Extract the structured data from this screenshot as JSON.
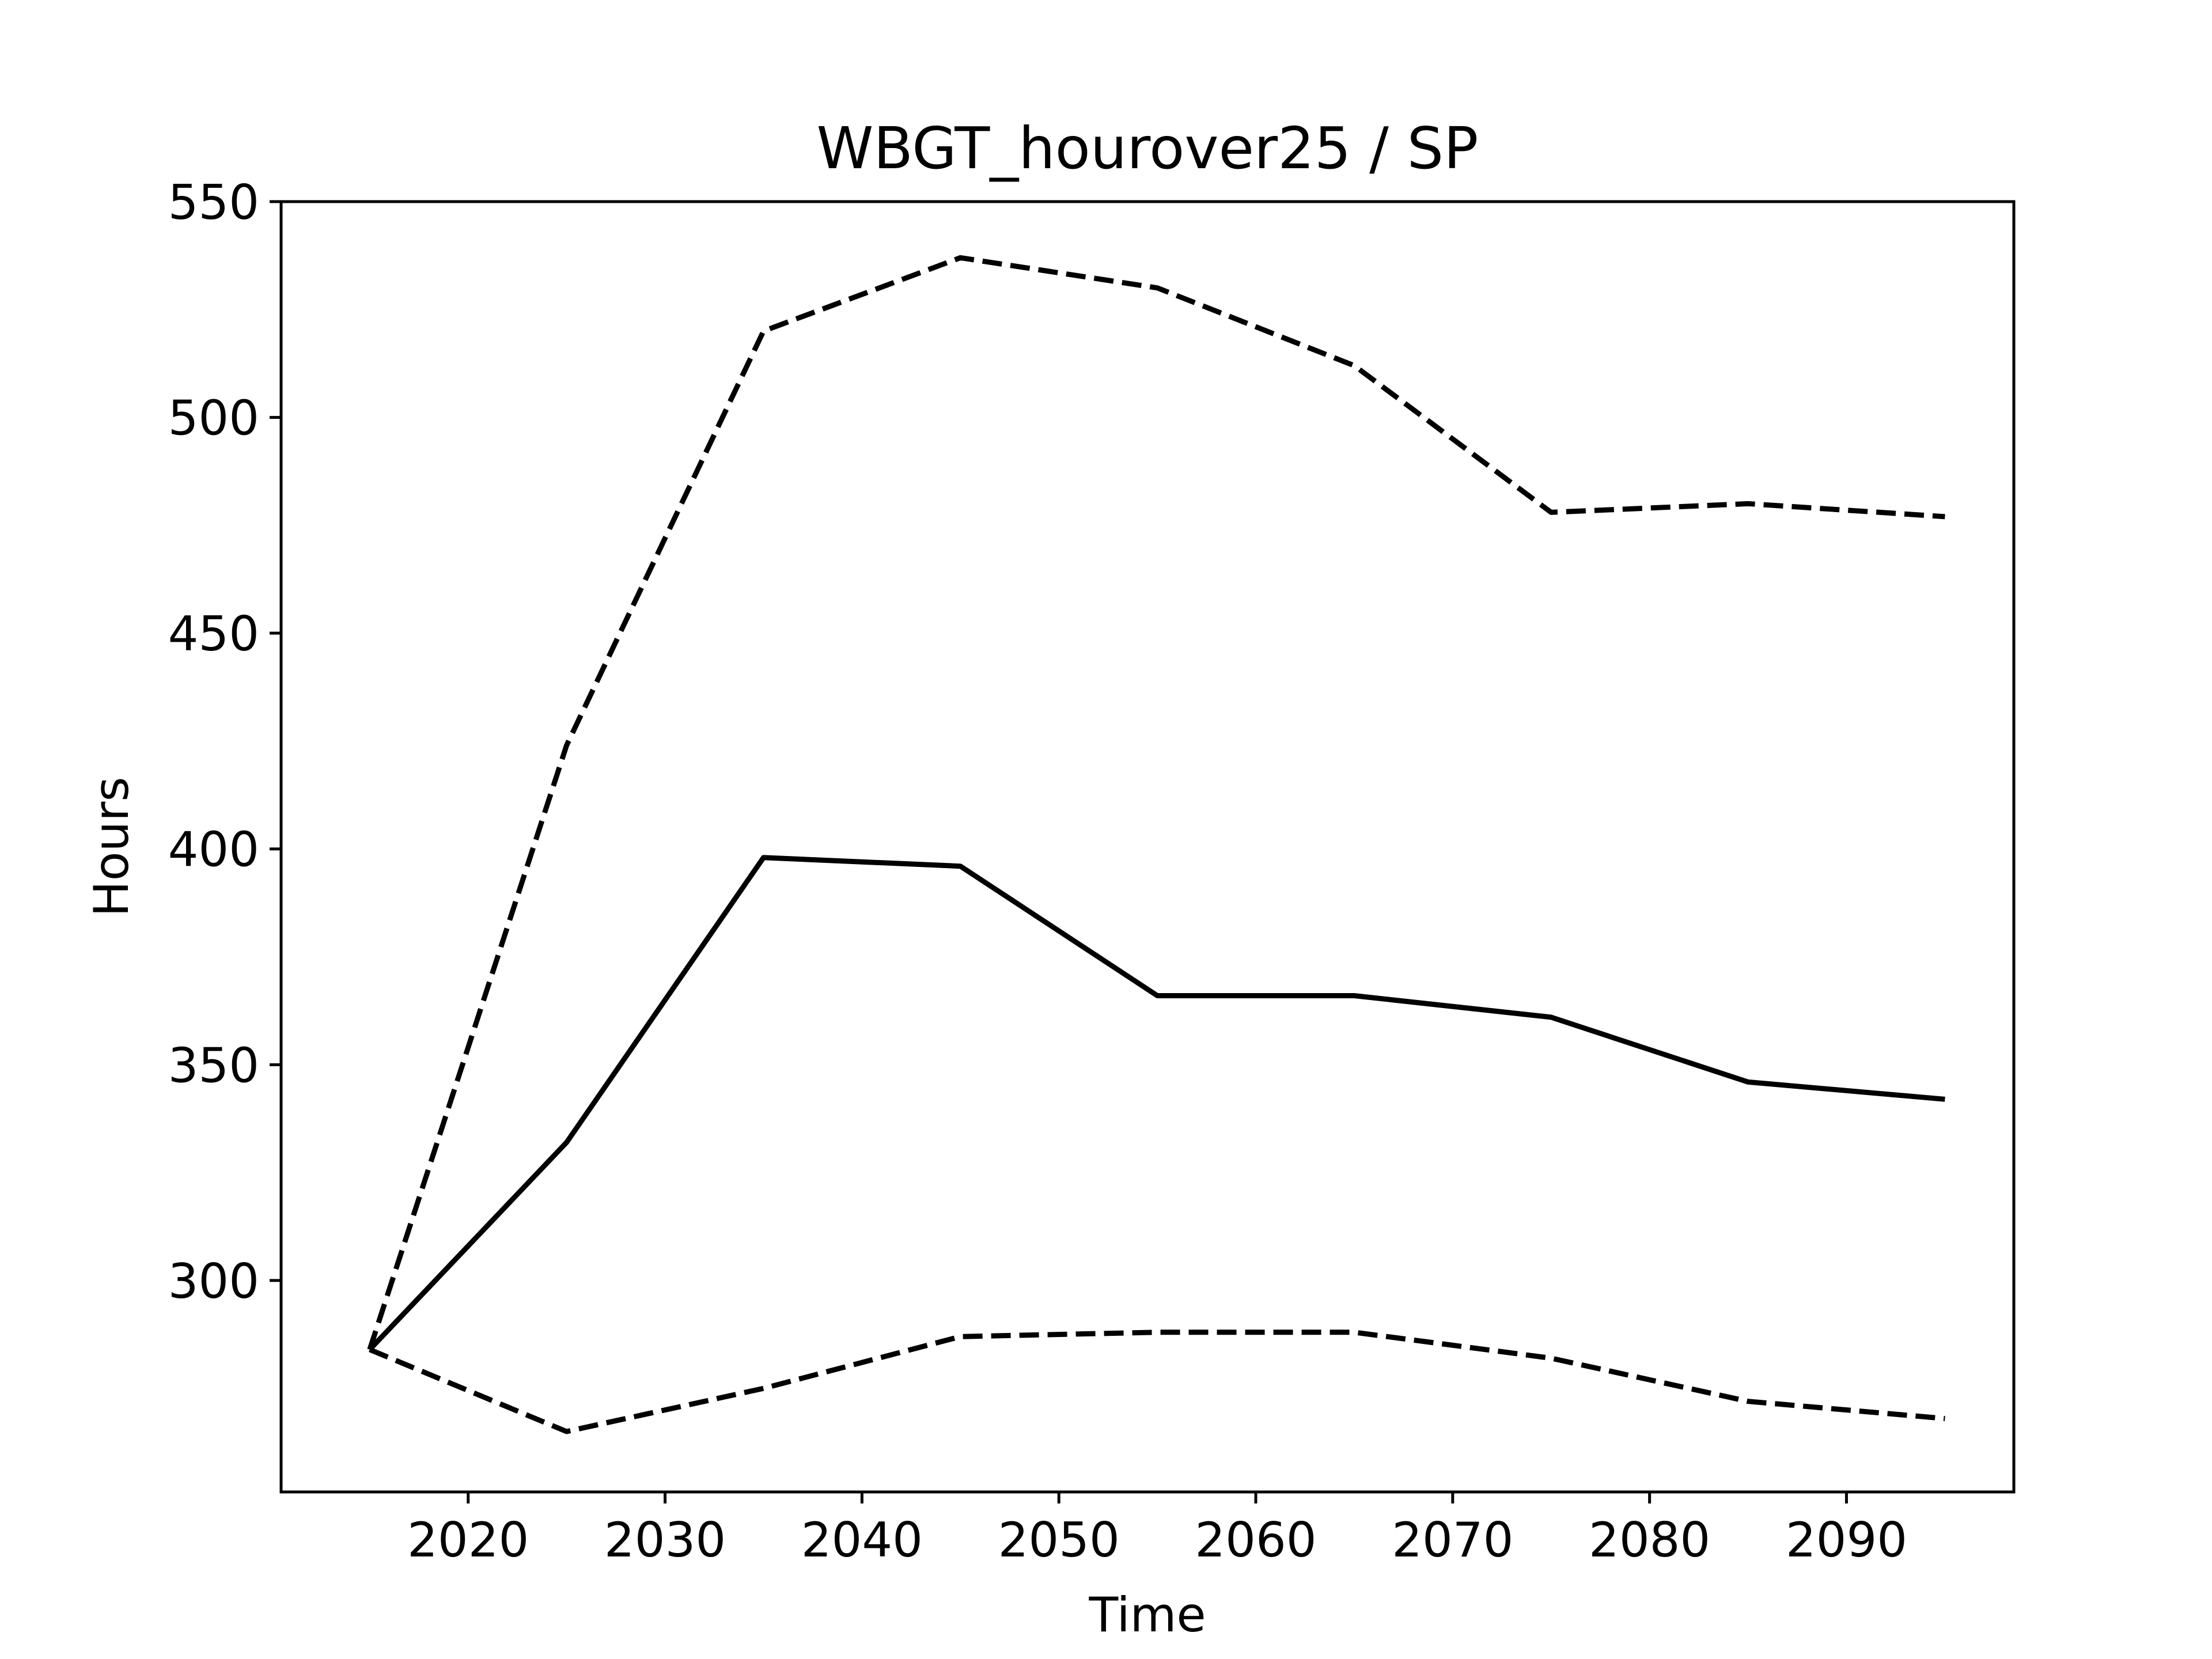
{
  "chart_data": {
    "type": "line",
    "title": "WBGT_hourover25 / SP",
    "xlabel": "Time",
    "ylabel": "Hours",
    "xlim": [
      2010.5,
      2098.5
    ],
    "ylim": [
      251,
      550
    ],
    "x_ticks": [
      2020,
      2030,
      2040,
      2050,
      2060,
      2070,
      2080,
      2090
    ],
    "y_ticks": [
      300,
      350,
      400,
      450,
      500,
      550
    ],
    "grid": false,
    "legend": "none",
    "x": [
      2015,
      2025,
      2035,
      2045,
      2055,
      2065,
      2075,
      2085,
      2095
    ],
    "series": [
      {
        "style": "dashed",
        "color": "#000000",
        "values": [
          284,
          424,
          520,
          537,
          530,
          512,
          478,
          480,
          477
        ]
      },
      {
        "style": "solid",
        "color": "#000000",
        "values": [
          284,
          332,
          398,
          396,
          366,
          366,
          361,
          346,
          342
        ]
      },
      {
        "style": "dashed",
        "color": "#000000",
        "values": [
          284,
          265,
          275,
          287,
          288,
          288,
          282,
          272,
          268
        ]
      }
    ]
  }
}
